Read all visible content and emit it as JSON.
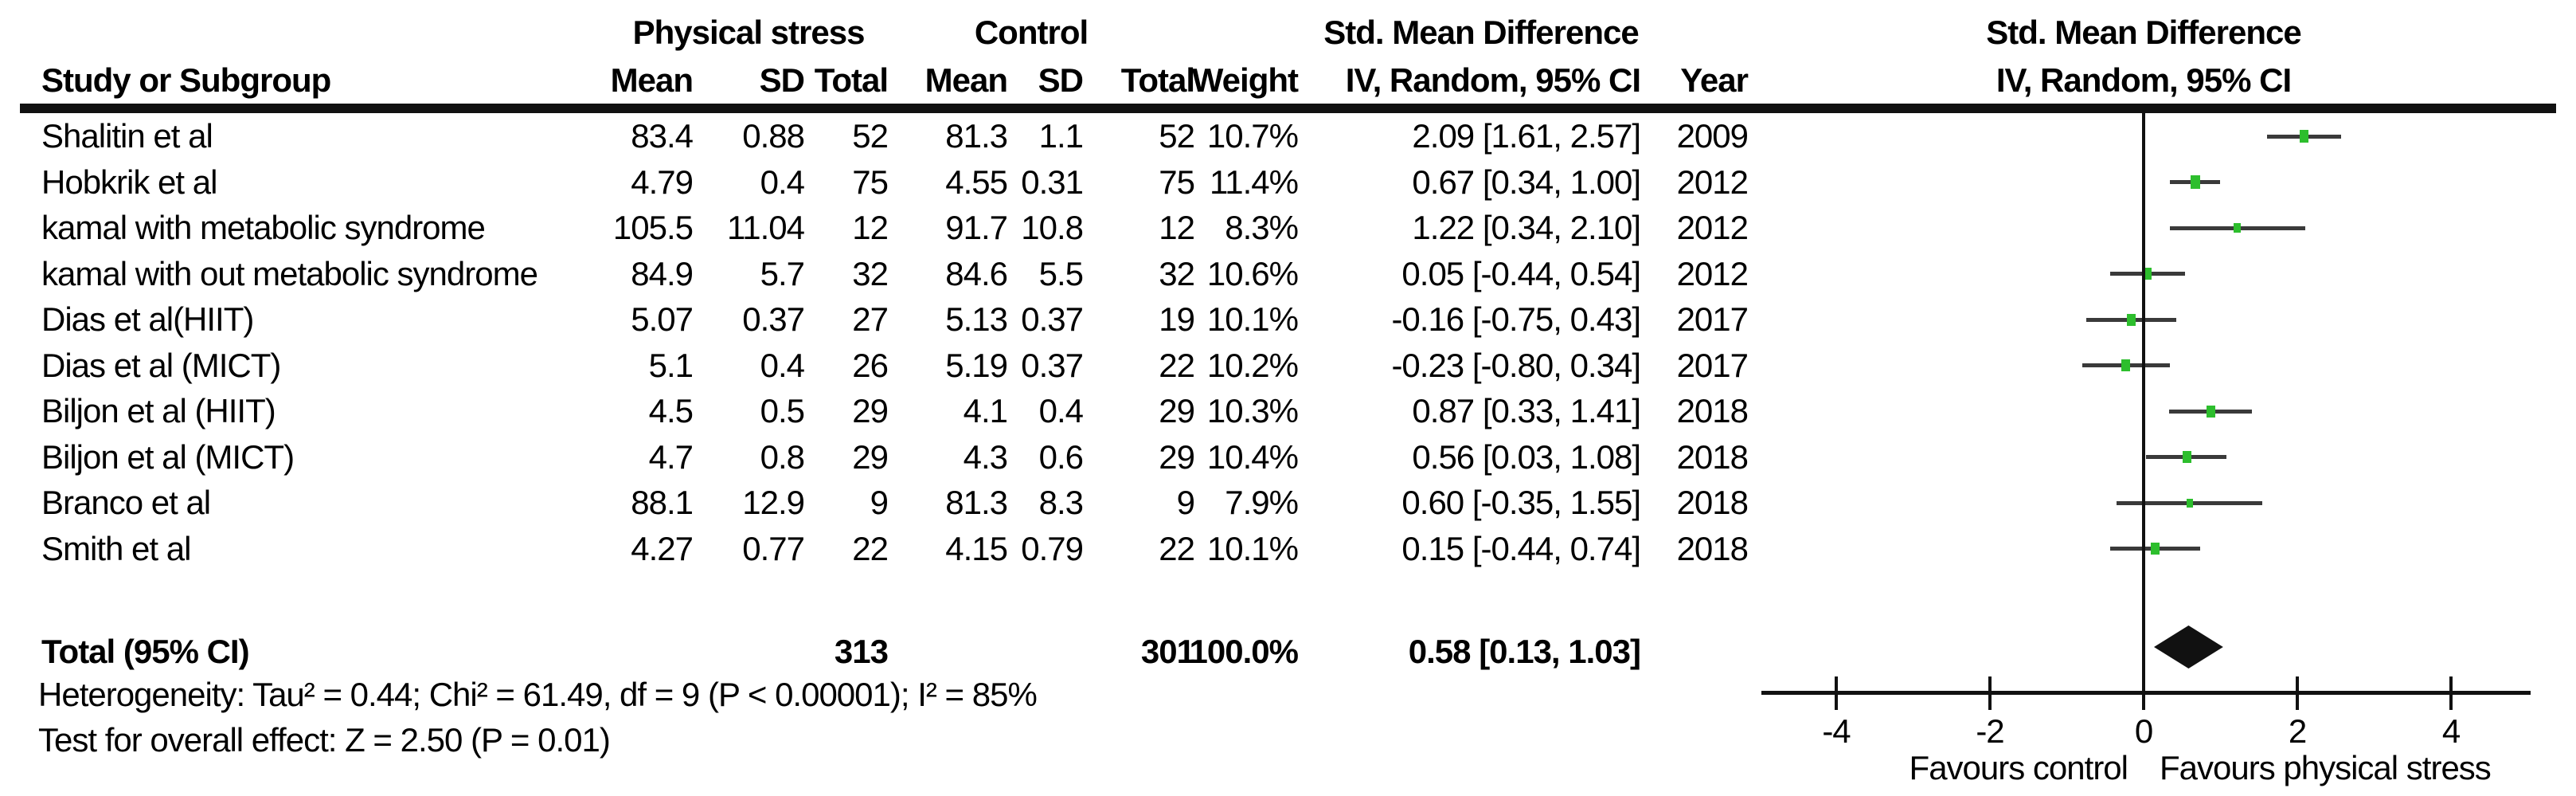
{
  "header": {
    "group_experimental": "Physical stress",
    "group_control": "Control",
    "smd_col_line1": "Std. Mean Difference",
    "smd_col_line2": "IV, Random, 95% CI",
    "plot_title_line1": "Std. Mean Difference",
    "plot_title_line2": "IV, Random, 95% CI",
    "study": "Study or Subgroup",
    "mean": "Mean",
    "sd": "SD",
    "total": "Total",
    "weight": "Weight",
    "year": "Year"
  },
  "chart_data": {
    "type": "forest",
    "effect_measure": "Std. Mean Difference",
    "model": "IV, Random, 95% CI",
    "studies": [
      {
        "name": "Shalitin et al",
        "mean1": "83.4",
        "sd1": "0.88",
        "n1": "52",
        "mean2": "81.3",
        "sd2": "1.1",
        "n2": "52",
        "weight": "10.7%",
        "weight_val": 10.7,
        "ci_text": "2.09 [1.61, 2.57]",
        "year": "2009",
        "est": 2.09,
        "lo": 1.61,
        "hi": 2.57
      },
      {
        "name": "Hobkrik et al",
        "mean1": "4.79",
        "sd1": "0.4",
        "n1": "75",
        "mean2": "4.55",
        "sd2": "0.31",
        "n2": "75",
        "weight": "11.4%",
        "weight_val": 11.4,
        "ci_text": "0.67 [0.34, 1.00]",
        "year": "2012",
        "est": 0.67,
        "lo": 0.34,
        "hi": 1.0
      },
      {
        "name": "kamal with metabolic syndrome",
        "mean1": "105.5",
        "sd1": "11.04",
        "n1": "12",
        "mean2": "91.7",
        "sd2": "10.8",
        "n2": "12",
        "weight": "8.3%",
        "weight_val": 8.3,
        "ci_text": "1.22 [0.34, 2.10]",
        "year": "2012",
        "est": 1.22,
        "lo": 0.34,
        "hi": 2.1
      },
      {
        "name": "kamal with out metabolic syndrome",
        "mean1": "84.9",
        "sd1": "5.7",
        "n1": "32",
        "mean2": "84.6",
        "sd2": "5.5",
        "n2": "32",
        "weight": "10.6%",
        "weight_val": 10.6,
        "ci_text": "0.05 [-0.44, 0.54]",
        "year": "2012",
        "est": 0.05,
        "lo": -0.44,
        "hi": 0.54
      },
      {
        "name": "Dias et al(HIIT)",
        "mean1": "5.07",
        "sd1": "0.37",
        "n1": "27",
        "mean2": "5.13",
        "sd2": "0.37",
        "n2": "19",
        "weight": "10.1%",
        "weight_val": 10.1,
        "ci_text": "-0.16 [-0.75, 0.43]",
        "year": "2017",
        "est": -0.16,
        "lo": -0.75,
        "hi": 0.43
      },
      {
        "name": "Dias et al (MICT)",
        "mean1": "5.1",
        "sd1": "0.4",
        "n1": "26",
        "mean2": "5.19",
        "sd2": "0.37",
        "n2": "22",
        "weight": "10.2%",
        "weight_val": 10.2,
        "ci_text": "-0.23 [-0.80, 0.34]",
        "year": "2017",
        "est": -0.23,
        "lo": -0.8,
        "hi": 0.34
      },
      {
        "name": "Biljon et al (HIIT)",
        "mean1": "4.5",
        "sd1": "0.5",
        "n1": "29",
        "mean2": "4.1",
        "sd2": "0.4",
        "n2": "29",
        "weight": "10.3%",
        "weight_val": 10.3,
        "ci_text": "0.87 [0.33, 1.41]",
        "year": "2018",
        "est": 0.87,
        "lo": 0.33,
        "hi": 1.41
      },
      {
        "name": "Biljon et al (MICT)",
        "mean1": "4.7",
        "sd1": "0.8",
        "n1": "29",
        "mean2": "4.3",
        "sd2": "0.6",
        "n2": "29",
        "weight": "10.4%",
        "weight_val": 10.4,
        "ci_text": "0.56 [0.03, 1.08]",
        "year": "2018",
        "est": 0.56,
        "lo": 0.03,
        "hi": 1.08
      },
      {
        "name": "Branco et al",
        "mean1": "88.1",
        "sd1": "12.9",
        "n1": "9",
        "mean2": "81.3",
        "sd2": "8.3",
        "n2": "9",
        "weight": "7.9%",
        "weight_val": 7.9,
        "ci_text": "0.60 [-0.35, 1.55]",
        "year": "2018",
        "est": 0.6,
        "lo": -0.35,
        "hi": 1.55
      },
      {
        "name": "Smith et al",
        "mean1": "4.27",
        "sd1": "0.77",
        "n1": "22",
        "mean2": "4.15",
        "sd2": "0.79",
        "n2": "22",
        "weight": "10.1%",
        "weight_val": 10.1,
        "ci_text": "0.15 [-0.44, 0.74]",
        "year": "2018",
        "est": 0.15,
        "lo": -0.44,
        "hi": 0.74
      }
    ],
    "total": {
      "label": "Total (95% CI)",
      "n1": "313",
      "n2": "301",
      "weight": "100.0%",
      "ci_text": "0.58 [0.13, 1.03]",
      "est": 0.58,
      "lo": 0.13,
      "hi": 1.03
    },
    "heterogeneity": "Heterogeneity: Tau² = 0.44; Chi² = 61.49, df = 9 (P < 0.00001); I² = 85%",
    "overall_effect": "Test for overall effect: Z = 2.50 (P = 0.01)",
    "axis": {
      "ticks": [
        "-4",
        "-2",
        "0",
        "2",
        "4"
      ],
      "tick_values": [
        -4,
        -2,
        0,
        2,
        4
      ],
      "xlim": [
        -5,
        5
      ],
      "grid": false
    },
    "favours": {
      "left": "Favours control",
      "right": "Favours physical stress"
    },
    "colors": {
      "marker": "#2DBE2D",
      "ci_line": "#3a3a3a",
      "diamond": "#111111",
      "text": "#000000"
    }
  }
}
